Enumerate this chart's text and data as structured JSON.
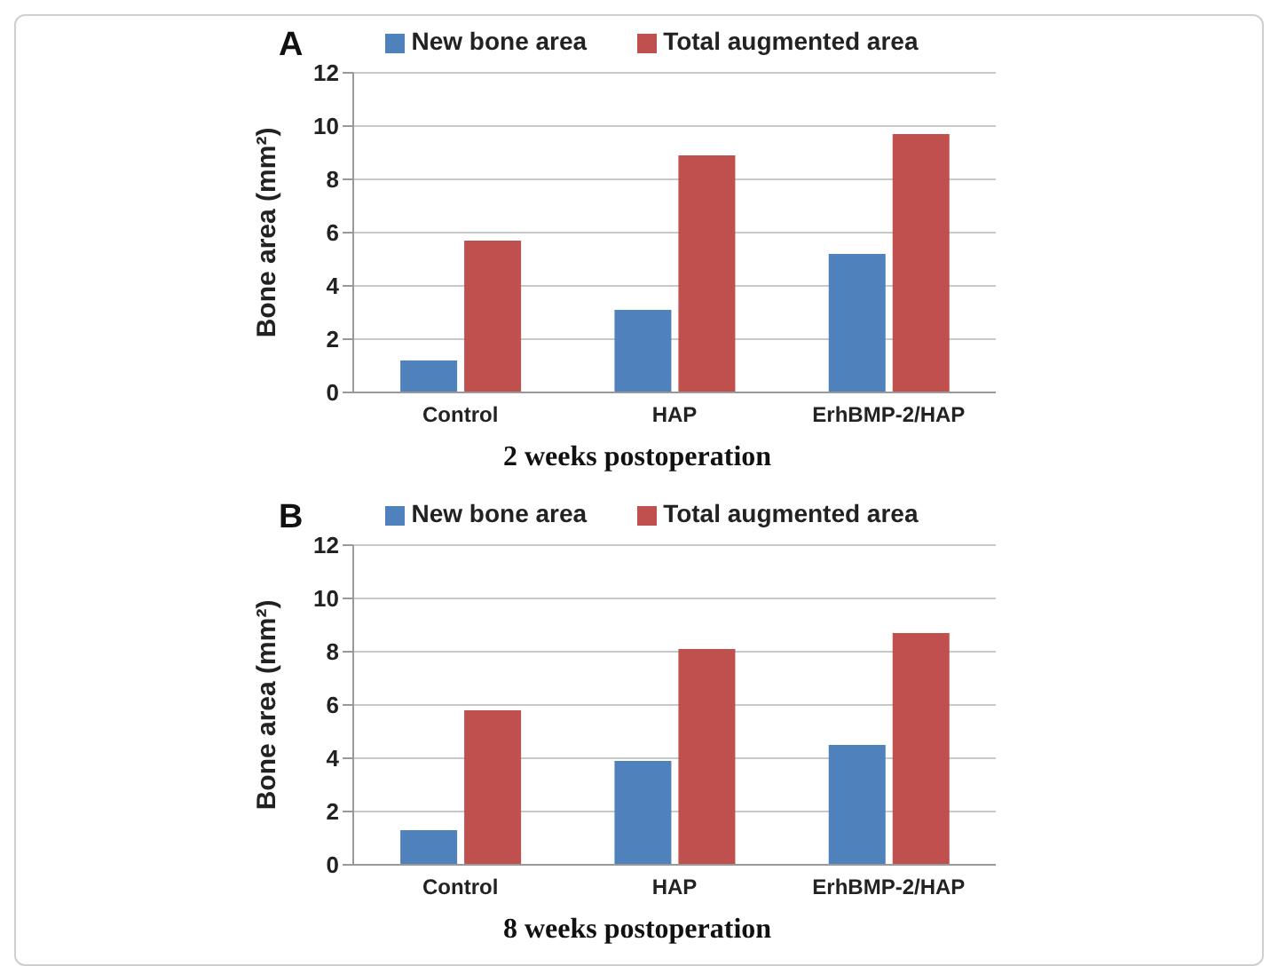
{
  "chart_data": [
    {
      "type": "bar",
      "title": "A",
      "xlabel": "2 weeks postoperation",
      "ylabel": "Bone area (mm²)",
      "categories": [
        "Control",
        "HAP",
        "ErhBMP-2/HAP"
      ],
      "series": [
        {
          "name": "New bone area",
          "color": "#4f81bd",
          "values": [
            1.2,
            3.1,
            5.2
          ]
        },
        {
          "name": "Total augmented area",
          "color": "#c0504d",
          "values": [
            5.7,
            8.9,
            9.7
          ]
        }
      ],
      "ylim": [
        0,
        12
      ],
      "yticks": [
        0,
        2,
        4,
        6,
        8,
        10,
        12
      ],
      "grid": "y",
      "legend": "top"
    },
    {
      "type": "bar",
      "title": "B",
      "xlabel": "8 weeks postoperation",
      "ylabel": "Bone area (mm²)",
      "categories": [
        "Control",
        "HAP",
        "ErhBMP-2/HAP"
      ],
      "series": [
        {
          "name": "New bone area",
          "color": "#4f81bd",
          "values": [
            1.3,
            3.9,
            4.5
          ]
        },
        {
          "name": "Total augmented area",
          "color": "#c0504d",
          "values": [
            5.8,
            8.1,
            8.7
          ]
        }
      ],
      "ylim": [
        0,
        12
      ],
      "yticks": [
        0,
        2,
        4,
        6,
        8,
        10,
        12
      ],
      "grid": "y",
      "legend": "top"
    }
  ]
}
